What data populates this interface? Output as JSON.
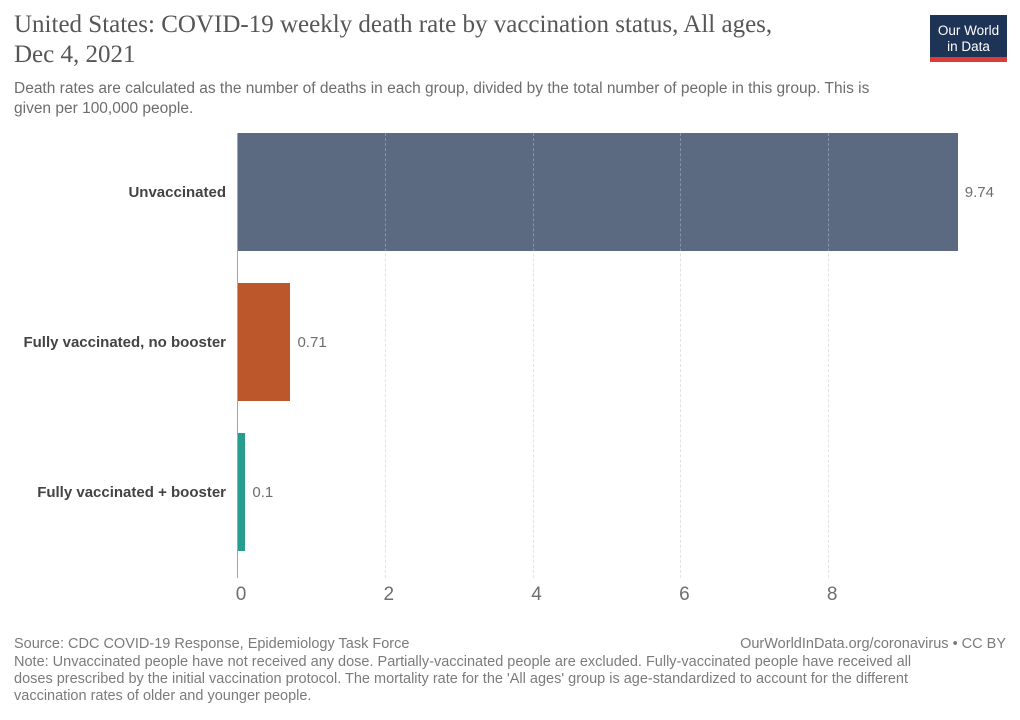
{
  "header": {
    "title": "United States: COVID-19 weekly death rate by vaccination status, All ages,\nDec 4, 2021",
    "subtitle": "Death rates are calculated as the number of deaths in each group, divided by the total number of people in this group. This is\ngiven per 100,000 people.",
    "logo": {
      "line1": "Our World",
      "line2": "in Data"
    }
  },
  "chart_data": {
    "type": "bar",
    "orientation": "horizontal",
    "title": "United States: COVID-19 weekly death rate by vaccination status, All ages, Dec 4, 2021",
    "categories": [
      "Unvaccinated",
      "Fully vaccinated, no booster",
      "Fully vaccinated + booster"
    ],
    "values": [
      9.74,
      0.71,
      0.1
    ],
    "value_labels": [
      "9.74",
      "0.71",
      "0.1"
    ],
    "bar_colors": [
      "#5b6a80",
      "#bc562b",
      "#269d8f"
    ],
    "x_ticks": [
      0,
      2,
      4,
      6,
      8
    ],
    "xlim": [
      0,
      10.2
    ],
    "grid": "vertical-dashed",
    "legend": "none"
  },
  "footer": {
    "source": "Source: CDC COVID-19 Response, Epidemiology Task Force",
    "attribution": "OurWorldInData.org/coronavirus • CC BY",
    "note": "Note: Unvaccinated people have not received any dose. Partially-vaccinated people are excluded. Fully-vaccinated people have received all\ndoses prescribed by the initial vaccination protocol. The mortality rate for the 'All ages' group is age-standardized to account for the different\nvaccination rates of older and younger people."
  },
  "colors": {
    "logo_navy": "#1d3456",
    "logo_red": "#dc3b38",
    "axis_line": "#a5a5a5",
    "gridline": "#d9d9d9"
  }
}
